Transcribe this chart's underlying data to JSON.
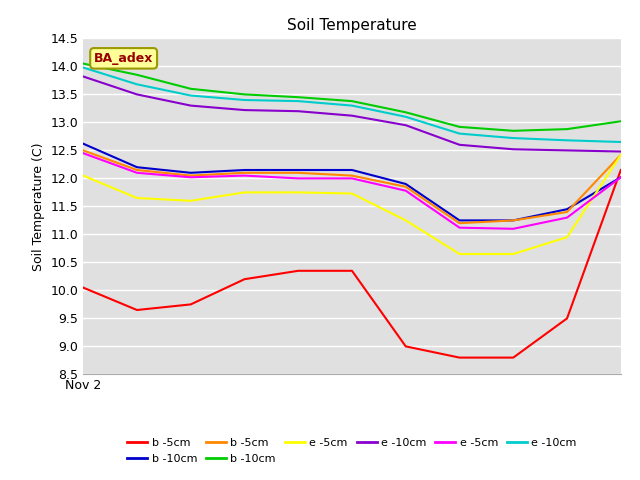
{
  "title": "Soil Temperature",
  "ylabel": "Soil Temperature (C)",
  "xlim": [
    0,
    10
  ],
  "ylim": [
    8.5,
    14.5
  ],
  "yticks": [
    8.5,
    9.0,
    9.5,
    10.0,
    10.5,
    11.0,
    11.5,
    12.0,
    12.5,
    13.0,
    13.5,
    14.0,
    14.5
  ],
  "xtick_label": "Nov 2",
  "annotation": "BA_adex",
  "bg_color": "#e0e0e0",
  "series": [
    {
      "label": "b -5cm",
      "color": "#ff0000",
      "x": [
        0,
        1,
        2,
        3,
        4,
        5,
        6,
        7,
        8,
        9,
        10
      ],
      "y": [
        10.05,
        9.65,
        9.75,
        10.2,
        10.35,
        10.35,
        9.0,
        8.8,
        8.8,
        9.5,
        12.15
      ]
    },
    {
      "label": "b -10cm",
      "color": "#0000cc",
      "x": [
        0,
        1,
        2,
        3,
        4,
        5,
        6,
        7,
        8,
        9,
        10
      ],
      "y": [
        12.62,
        12.2,
        12.1,
        12.15,
        12.15,
        12.15,
        11.9,
        11.25,
        11.25,
        11.45,
        12.02
      ]
    },
    {
      "label": "b -5cm",
      "color": "#ff8800",
      "x": [
        0,
        1,
        2,
        3,
        4,
        5,
        6,
        7,
        8,
        9,
        10
      ],
      "y": [
        12.5,
        12.15,
        12.05,
        12.1,
        12.1,
        12.05,
        11.85,
        11.2,
        11.25,
        11.4,
        12.42
      ]
    },
    {
      "label": "b -10cm",
      "color": "#00cc00",
      "x": [
        0,
        1,
        2,
        3,
        4,
        5,
        6,
        7,
        8,
        9,
        10
      ],
      "y": [
        14.05,
        13.85,
        13.6,
        13.5,
        13.45,
        13.38,
        13.18,
        12.92,
        12.85,
        12.88,
        13.02
      ]
    },
    {
      "label": "e -5cm",
      "color": "#ffff00",
      "x": [
        0,
        1,
        2,
        3,
        4,
        5,
        6,
        7,
        8,
        9,
        10
      ],
      "y": [
        12.05,
        11.65,
        11.6,
        11.75,
        11.75,
        11.73,
        11.25,
        10.65,
        10.65,
        10.95,
        12.42
      ]
    },
    {
      "label": "e -10cm",
      "color": "#8800cc",
      "x": [
        0,
        1,
        2,
        3,
        4,
        5,
        6,
        7,
        8,
        9,
        10
      ],
      "y": [
        13.82,
        13.5,
        13.3,
        13.22,
        13.2,
        13.12,
        12.95,
        12.6,
        12.52,
        12.5,
        12.48
      ]
    },
    {
      "label": "e -5cm",
      "color": "#ff00ff",
      "x": [
        0,
        1,
        2,
        3,
        4,
        5,
        6,
        7,
        8,
        9,
        10
      ],
      "y": [
        12.45,
        12.1,
        12.02,
        12.05,
        12.0,
        12.0,
        11.78,
        11.12,
        11.1,
        11.3,
        12.02
      ]
    },
    {
      "label": "e -10cm",
      "color": "#00cccc",
      "x": [
        0,
        1,
        2,
        3,
        4,
        5,
        6,
        7,
        8,
        9,
        10
      ],
      "y": [
        13.98,
        13.68,
        13.48,
        13.4,
        13.38,
        13.3,
        13.1,
        12.8,
        12.72,
        12.68,
        12.65
      ]
    }
  ]
}
